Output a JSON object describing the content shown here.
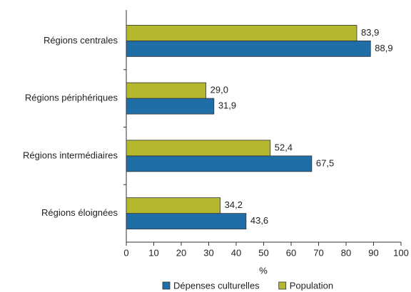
{
  "chart_data": {
    "type": "bar",
    "orientation": "horizontal",
    "categories": [
      "Régions centrales",
      "Régions périphériques",
      "Régions intermédiaires",
      "Régions éloignées"
    ],
    "series": [
      {
        "name": "Dépenses culturelles",
        "color": "#1f6ea8",
        "values": [
          88.9,
          31.9,
          67.5,
          43.6
        ],
        "value_labels": [
          "88,9",
          "31,9",
          "67,5",
          "43,6"
        ]
      },
      {
        "name": "Population",
        "color": "#b4b82e",
        "values": [
          83.9,
          29.0,
          52.4,
          34.2
        ],
        "value_labels": [
          "83,9",
          "29,0",
          "52,4",
          "34,2"
        ]
      }
    ],
    "xlabel": "%",
    "xlim": [
      0,
      100
    ],
    "xticks": [
      0,
      10,
      20,
      30,
      40,
      50,
      60,
      70,
      80,
      90,
      100
    ],
    "legend": "bottom"
  }
}
